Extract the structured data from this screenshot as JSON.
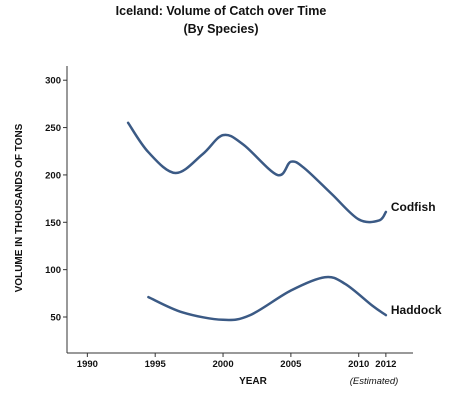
{
  "chart_data": {
    "type": "line",
    "title": "Iceland: Volume of Catch over Time",
    "subtitle": "(By Species)",
    "xlabel": "YEAR",
    "ylabel": "VOLUME IN THOUSANDS OF TONS",
    "xlim": [
      1988.5,
      2014
    ],
    "ylim": [
      12,
      315
    ],
    "x_ticks": [
      1990,
      1995,
      2000,
      2005,
      2010,
      2012
    ],
    "y_ticks": [
      50,
      100,
      150,
      200,
      250,
      300
    ],
    "annotation": "(Estimated)",
    "grid": false,
    "legend": "none",
    "line_color": "#3b5a85",
    "series": [
      {
        "name": "Codfish",
        "x": [
          1993,
          1994.5,
          1996.5,
          1998.5,
          2000,
          2001.5,
          2004,
          2005,
          2006,
          2008,
          2010,
          2011.5,
          2012
        ],
        "y": [
          255,
          224,
          202,
          222,
          242,
          232,
          200,
          214,
          207,
          180,
          153,
          152,
          161
        ]
      },
      {
        "name": "Haddock",
        "x": [
          1994.5,
          1997,
          2000,
          2002,
          2005,
          2007.5,
          2009,
          2011,
          2012
        ],
        "y": [
          71,
          55,
          47,
          52,
          78,
          92,
          85,
          62,
          52
        ]
      }
    ]
  }
}
